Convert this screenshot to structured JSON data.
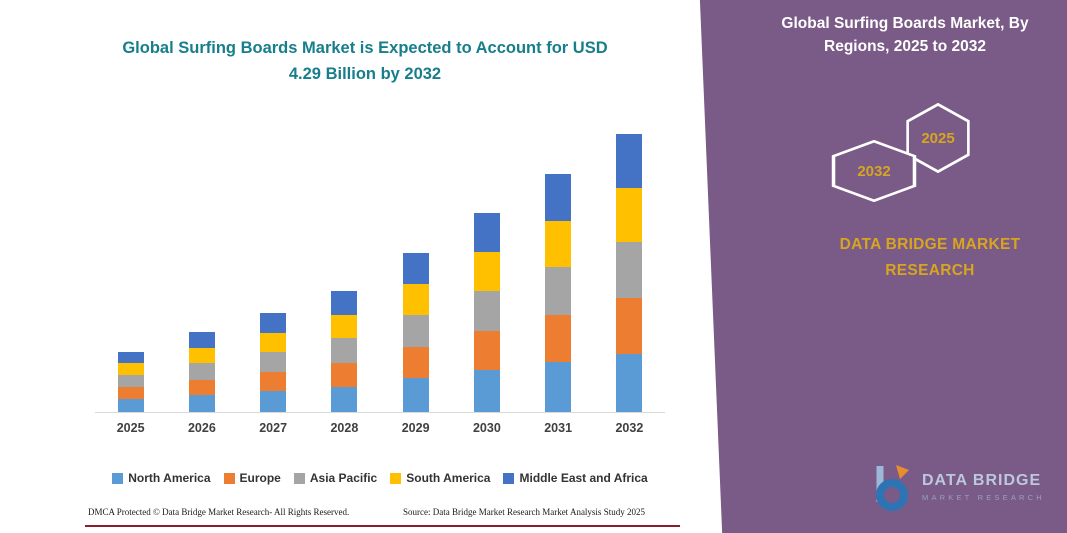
{
  "colors": {
    "panel_purple": "#7A5A87",
    "title_teal": "#177E8C",
    "gold": "#D7A51F",
    "footer_line_maroon": "#8B1E2D",
    "axis_gray": "#D9D9D9"
  },
  "header": {
    "title_line1": "Global Surfing Boards Market is Expected to Account for USD",
    "title_line2": "4.29 Billion by 2032"
  },
  "panel": {
    "title": "Global Surfing Boards Market, By Regions, 2025 to 2032",
    "hexagon_back_year": "2025",
    "hexagon_front_year": "2032",
    "brand_line1": "DATA BRIDGE MARKET",
    "brand_line2": "RESEARCH"
  },
  "logo": {
    "name": "DATA BRIDGE",
    "tagline": "MARKET RESEARCH"
  },
  "footer": {
    "dmca": "DMCA Protected © Data Bridge Market Research-  All Rights Reserved.",
    "source": "Source: Data Bridge Market Research  Market Analysis Study 2025"
  },
  "chart_data": {
    "type": "bar",
    "stacked": true,
    "title": "Global Surfing Boards Market is Expected to Account for USD 4.29 Billion by 2032",
    "unit": "USD Billion",
    "xlabel": "",
    "ylabel": "",
    "ylim": [
      0,
      4.5
    ],
    "grid": false,
    "legend_position": "bottom",
    "categories": [
      "2025",
      "2026",
      "2027",
      "2028",
      "2029",
      "2030",
      "2031",
      "2032"
    ],
    "series": [
      {
        "name": "North America",
        "color": "#5B9BD5",
        "values": [
          0.2,
          0.26,
          0.32,
          0.39,
          0.52,
          0.65,
          0.77,
          0.9
        ]
      },
      {
        "name": "Europe",
        "color": "#ED7D31",
        "values": [
          0.18,
          0.24,
          0.3,
          0.37,
          0.48,
          0.6,
          0.72,
          0.85
        ]
      },
      {
        "name": "Asia Pacific",
        "color": "#A5A5A5",
        "values": [
          0.19,
          0.25,
          0.31,
          0.38,
          0.5,
          0.62,
          0.74,
          0.87
        ]
      },
      {
        "name": "South America",
        "color": "#FFC000",
        "values": [
          0.18,
          0.24,
          0.29,
          0.36,
          0.47,
          0.59,
          0.71,
          0.83
        ]
      },
      {
        "name": "Middle East and Africa",
        "color": "#4472C4",
        "values": [
          0.18,
          0.25,
          0.3,
          0.36,
          0.48,
          0.61,
          0.73,
          0.84
        ]
      }
    ],
    "totals": [
      0.93,
      1.24,
      1.52,
      1.86,
      2.45,
      3.07,
      3.67,
      4.29
    ]
  }
}
